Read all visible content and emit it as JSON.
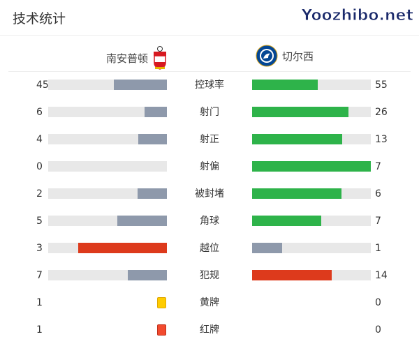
{
  "title": "技术统计",
  "home": {
    "name": "南安普顿",
    "crest": "southampton-crest"
  },
  "away": {
    "name": "切尔西",
    "crest": "chelsea-crest"
  },
  "colors": {
    "track": "#e8e8e8",
    "gray": "#8e99ab",
    "green": "#2eb34a",
    "red": "#dd3a1c",
    "yellow": "#ffcc00",
    "redcard": "#f24a2e"
  },
  "stats": [
    {
      "label": "控球率",
      "home": "45",
      "away": "55",
      "home_fill": 0.45,
      "away_fill": 0.55,
      "home_color": "#8e99ab",
      "away_color": "#2eb34a"
    },
    {
      "label": "射门",
      "home": "6",
      "away": "26",
      "home_fill": 0.19,
      "away_fill": 0.81,
      "home_color": "#8e99ab",
      "away_color": "#2eb34a"
    },
    {
      "label": "射正",
      "home": "4",
      "away": "13",
      "home_fill": 0.24,
      "away_fill": 0.76,
      "home_color": "#8e99ab",
      "away_color": "#2eb34a"
    },
    {
      "label": "射偏",
      "home": "0",
      "away": "7",
      "home_fill": 0,
      "away_fill": 1,
      "home_color": "#8e99ab",
      "away_color": "#2eb34a"
    },
    {
      "label": "被封堵",
      "home": "2",
      "away": "6",
      "home_fill": 0.25,
      "away_fill": 0.75,
      "home_color": "#8e99ab",
      "away_color": "#2eb34a"
    },
    {
      "label": "角球",
      "home": "5",
      "away": "7",
      "home_fill": 0.42,
      "away_fill": 0.58,
      "home_color": "#8e99ab",
      "away_color": "#2eb34a"
    },
    {
      "label": "越位",
      "home": "3",
      "away": "1",
      "home_fill": 0.75,
      "away_fill": 0.25,
      "home_color": "#dd3a1c",
      "away_color": "#8e99ab"
    },
    {
      "label": "犯规",
      "home": "7",
      "away": "14",
      "home_fill": 0.33,
      "away_fill": 0.67,
      "home_color": "#8e99ab",
      "away_color": "#dd3a1c"
    }
  ],
  "cards": [
    {
      "label": "黄牌",
      "home": "1",
      "away": "0",
      "color": "#ffcc00"
    },
    {
      "label": "红牌",
      "home": "1",
      "away": "0",
      "color": "#f24a2e"
    }
  ],
  "watermark": "Yoozhibo.net"
}
